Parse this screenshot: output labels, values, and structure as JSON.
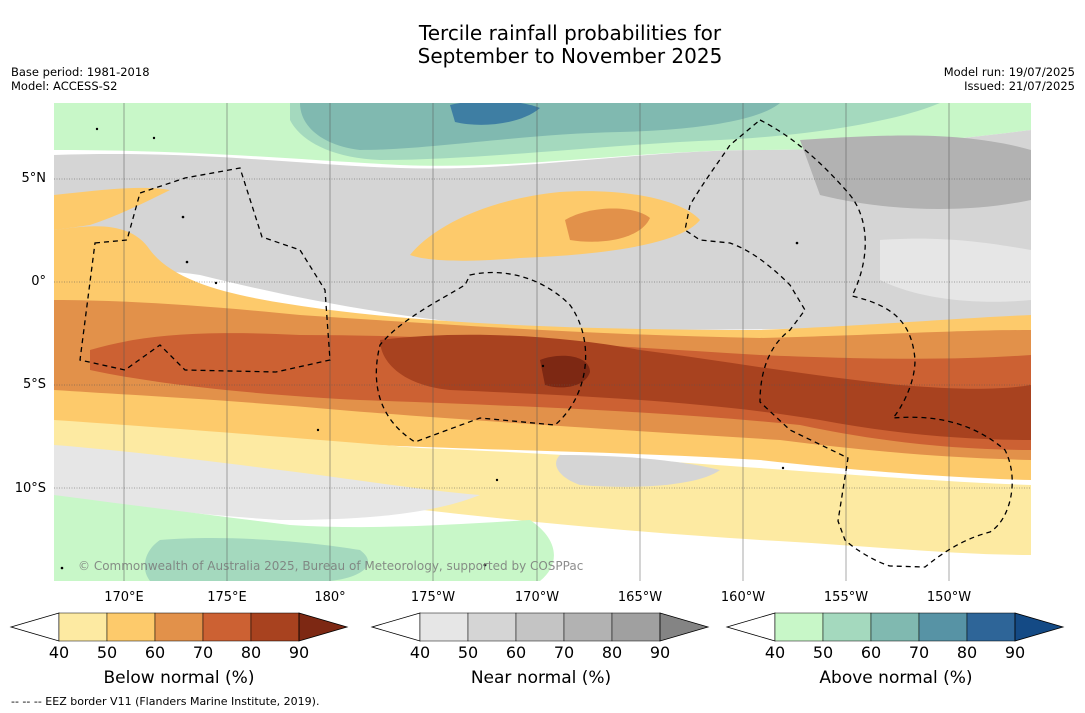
{
  "title_line1": "Tercile rainfall probabilities for",
  "title_line2": "September to November 2025",
  "meta_left": {
    "base_period": "Base period: 1981-2018",
    "model": "Model: ACCESS-S2"
  },
  "meta_right": {
    "model_run": "Model run: 19/07/2025",
    "issued": "Issued: 21/07/2025"
  },
  "lat_labels": [
    "5°N",
    "0°",
    "5°S",
    "10°S"
  ],
  "lon_labels": [
    "170°E",
    "175°E",
    "180°",
    "175°W",
    "170°W",
    "165°W",
    "160°W",
    "155°W",
    "150°W"
  ],
  "copyright": "© Commonwealth of Australia 2025, Bureau of Meteorology, supported by COSPPac",
  "colorbars": [
    {
      "title": "Below normal (%)",
      "ticks": [
        "40",
        "50",
        "60",
        "70",
        "80",
        "90"
      ],
      "colors": [
        "#fdeaa2",
        "#fdca6b",
        "#e2914a",
        "#cc6133",
        "#a8421f",
        "#7d2813"
      ]
    },
    {
      "title": "Near normal (%)",
      "ticks": [
        "40",
        "50",
        "60",
        "70",
        "80",
        "90"
      ],
      "colors": [
        "#e6e6e6",
        "#d5d5d5",
        "#c4c4c4",
        "#b2b2b2",
        "#a0a0a0",
        "#848484"
      ]
    },
    {
      "title": "Above normal (%)",
      "ticks": [
        "40",
        "50",
        "60",
        "70",
        "80",
        "90"
      ],
      "colors": [
        "#c8f7c8",
        "#a4d9be",
        "#80b9b0",
        "#5793a5",
        "#2e6598",
        "#144a85"
      ]
    }
  ],
  "eez_note": "--  --  -- EEZ border V11 (Flanders Marine Institute, 2019)."
}
